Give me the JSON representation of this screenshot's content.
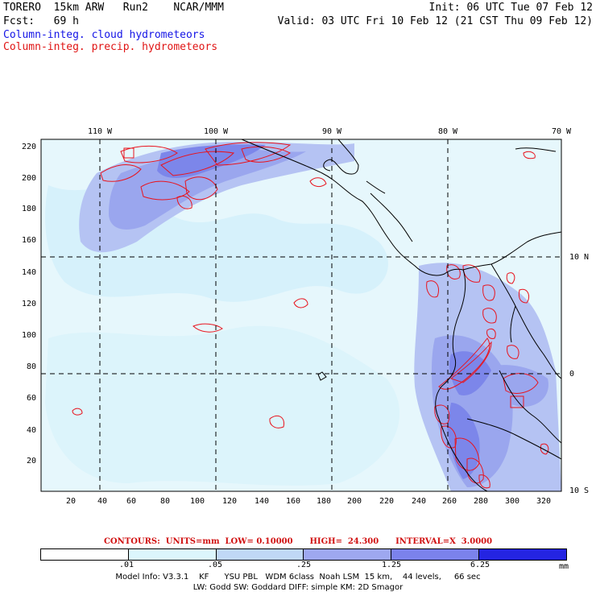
{
  "header": {
    "line1_left": "TORERO  15km ARW   Run2    NCAR/MMM",
    "line1_right": "Init: 06 UTC Tue 07 Feb 12",
    "line2_left": "Fcst:   69 h",
    "line2_right": "Valid: 03 UTC Fri 10 Feb 12 (21 CST Thu 09 Feb 12)",
    "line3": "Column-integ. cloud hydrometeors",
    "line4": "Column-integ. precip. hydrometeors"
  },
  "map": {
    "lon_labels": [
      "110 W",
      "100 W",
      "90 W",
      "80 W",
      "70 W"
    ],
    "lat_labels": [
      "10 N",
      "0",
      "10 S"
    ],
    "x_ticks": [
      "20",
      "40",
      "60",
      "80",
      "100",
      "120",
      "140",
      "160",
      "180",
      "200",
      "220",
      "240",
      "260",
      "280",
      "300",
      "320"
    ],
    "y_ticks": [
      "20",
      "40",
      "60",
      "80",
      "100",
      "120",
      "140",
      "160",
      "180",
      "200",
      "220"
    ],
    "colors": {
      "land_line": "#000000",
      "contour": "#e8141e",
      "grid": "#000000"
    }
  },
  "contours": {
    "text": "CONTOURS:  UNITS=mm  LOW= 0.10000      HIGH=  24.300      INTERVAL=X  3.0000"
  },
  "colorbar": {
    "labels": [
      ".01",
      ".05",
      ".25",
      "1.25",
      "6.25"
    ],
    "unit": "mm",
    "colors": [
      "#ffffff",
      "#dcf6fc",
      "#c0d8f6",
      "#9ea8f0",
      "#7b82ec",
      "#5456e6",
      "#2424e2"
    ]
  },
  "footer": {
    "line1": "Model Info: V3.3.1    KF      YSU PBL   WDM 6class  Noah LSM  15 km,    44 levels,     66 sec",
    "line2": "LW: Godd SW: Goddard DIFF: simple KM: 2D Smagor"
  }
}
